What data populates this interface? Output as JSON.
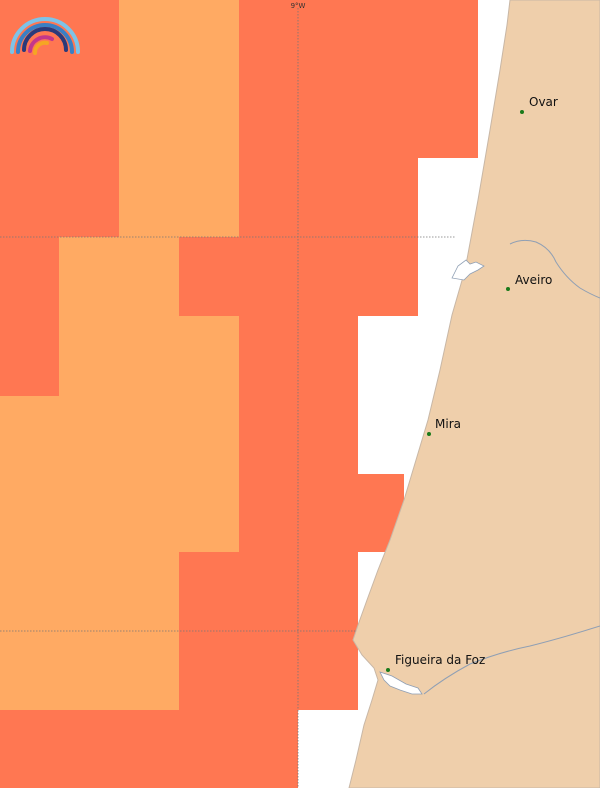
{
  "map": {
    "colors": {
      "sea": "#ffffff",
      "land": "#efcfab",
      "coast": "#c8b7a6",
      "river": "#8f9fb4",
      "grid": "#777777",
      "city_dot": "#1a7a1a",
      "class_high": "#ff7752",
      "class_medium": "#ffaa63"
    },
    "graticule_label": "9°W",
    "places": [
      {
        "id": "ovar",
        "name": "Ovar"
      },
      {
        "id": "aveiro",
        "name": "Aveiro"
      },
      {
        "id": "mira",
        "name": "Mira"
      },
      {
        "id": "figueira-da-foz",
        "name": "Figueira da Foz"
      }
    ],
    "logo_icon": "rainbow-logo-icon"
  }
}
